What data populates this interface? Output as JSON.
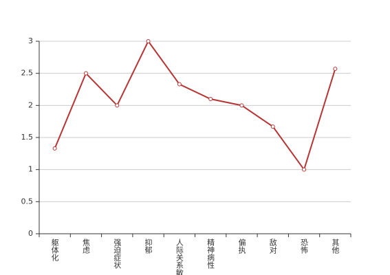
{
  "chart_data": {
    "type": "line",
    "categories": [
      "躯体化",
      "焦虑",
      "强迫症状",
      "抑郁",
      "人际关系敏感",
      "精神病性",
      "偏执",
      "敌对",
      "恐怖",
      "其他"
    ],
    "values": [
      1.33,
      2.5,
      2,
      3,
      2.33,
      2.1,
      2,
      1.67,
      1,
      2.57
    ],
    "color": "#b83333",
    "ylim": [
      0,
      3
    ],
    "yticks": [
      0,
      0.5,
      1,
      1.5,
      2,
      2.5,
      3
    ],
    "grid": true
  }
}
